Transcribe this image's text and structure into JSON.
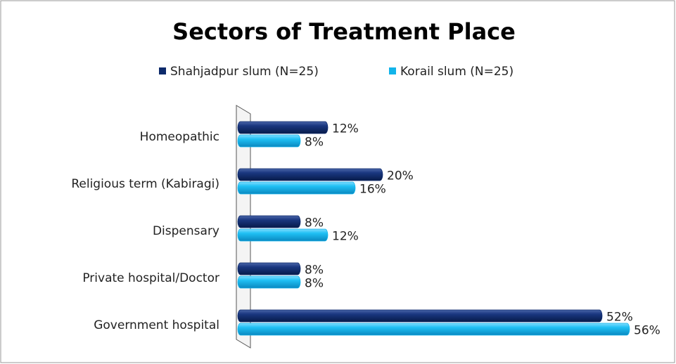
{
  "chart_data": {
    "type": "bar",
    "orientation": "horizontal",
    "title": "Sectors of Treatment Place",
    "categories": [
      "Homeopathic",
      "Religious term (Kabiragi)",
      "Dispensary",
      "Private hospital/Doctor",
      "Government hospital"
    ],
    "series": [
      {
        "name": "Shahjadpur slum (N=25)",
        "color": "#0d2a6b",
        "values": [
          12,
          20,
          8,
          8,
          52
        ],
        "value_labels": [
          "12%",
          "20%",
          "8%",
          "8%",
          "52%"
        ]
      },
      {
        "name": "Korail slum (N=25)",
        "color": "#12b4ea",
        "values": [
          8,
          16,
          12,
          8,
          56
        ],
        "value_labels": [
          "8%",
          "16%",
          "12%",
          "8%",
          "56%"
        ]
      }
    ],
    "legend": "top"
  }
}
